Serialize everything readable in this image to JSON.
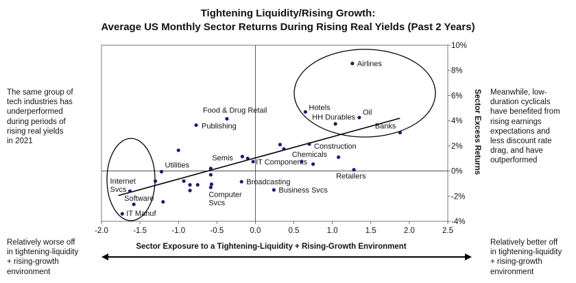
{
  "titles": {
    "line1": "Tightening Liquidity/Rising Growth:",
    "line2": "Average US Monthly Sector Returns During Rising Real Yields (Past 2 Years)"
  },
  "notes": {
    "left": [
      "The same group of",
      "tech industries has",
      "underperformed",
      "during periods of",
      "rising real yields",
      "in 2021"
    ],
    "right": [
      "Meanwhile, low-",
      "duration cyclicals",
      "have benefited from",
      "rising earnings",
      "expectations and",
      "less discount rate",
      "drag, and have",
      "outperformed"
    ],
    "bottom_left": [
      "Relatively worse off",
      "in tightening-liquidity",
      "+ rising-growth",
      "environment"
    ],
    "bottom_right": [
      "Relatively better off",
      "in tightening-liquidity",
      "+ rising-growth",
      "environment"
    ]
  },
  "colors": {
    "point": "#1f1a6e",
    "trend": "#000000",
    "text": "#111111"
  },
  "chart_data": {
    "type": "scatter",
    "xlabel": "Sector Exposure to a Tightening-Liquidity + Rising-Growth Environment",
    "ylabel": "Sector Excess Returns",
    "xlim": [
      -2.0,
      2.5
    ],
    "ylim": [
      -4,
      10
    ],
    "x_ticks": [
      -2.0,
      -1.5,
      -1.0,
      -0.5,
      0.0,
      0.5,
      1.0,
      1.5,
      2.0,
      2.5
    ],
    "x_tick_labels": [
      "-2.0",
      "-1.5",
      "-1.0",
      "-0.5",
      "0.0",
      "0.5",
      "1.0",
      "1.5",
      "2.0",
      "2.5"
    ],
    "y_ticks": [
      -4,
      -2,
      0,
      2,
      4,
      6,
      8,
      10
    ],
    "y_tick_labels": [
      "-4%",
      "-2%",
      "0%",
      "2%",
      "4%",
      "6%",
      "8%",
      "10%"
    ],
    "y_axis_position": "right",
    "grid": false,
    "points": [
      {
        "x": -1.73,
        "y": -3.4,
        "label": "IT Manuf"
      },
      {
        "x": -1.58,
        "y": -2.65,
        "label": "Software"
      },
      {
        "x": -1.63,
        "y": -1.6,
        "label": "Internet Svcs"
      },
      {
        "x": -1.3,
        "y": -0.8,
        "label": ""
      },
      {
        "x": -1.22,
        "y": -0.05,
        "label": "Utilities"
      },
      {
        "x": -1.0,
        "y": 1.65,
        "label": ""
      },
      {
        "x": -1.2,
        "y": -2.45,
        "label": ""
      },
      {
        "x": -0.93,
        "y": -0.8,
        "label": ""
      },
      {
        "x": -0.85,
        "y": -1.1,
        "label": ""
      },
      {
        "x": -0.85,
        "y": -1.55,
        "label": ""
      },
      {
        "x": -0.75,
        "y": -1.1,
        "label": ""
      },
      {
        "x": -0.77,
        "y": 3.65,
        "label": "Publishing"
      },
      {
        "x": -0.37,
        "y": 4.15,
        "label": "Food & Drug Retail"
      },
      {
        "x": -0.58,
        "y": 0.2,
        "label": "Semis"
      },
      {
        "x": -0.57,
        "y": -1.05,
        "label": ""
      },
      {
        "x": -0.58,
        "y": -1.3,
        "label": "Computer Svcs"
      },
      {
        "x": -0.58,
        "y": -0.3,
        "label": ""
      },
      {
        "x": -0.17,
        "y": 1.15,
        "label": ""
      },
      {
        "x": -0.1,
        "y": 1.0,
        "label": ""
      },
      {
        "x": -0.03,
        "y": 0.75,
        "label": "IT Components"
      },
      {
        "x": -0.18,
        "y": -0.85,
        "label": "Broadcasting"
      },
      {
        "x": 0.24,
        "y": -1.5,
        "label": "Business Svcs"
      },
      {
        "x": 0.32,
        "y": 2.1,
        "label": ""
      },
      {
        "x": 0.37,
        "y": 1.75,
        "label": ""
      },
      {
        "x": 0.6,
        "y": 0.75,
        "label": "Chemicals"
      },
      {
        "x": 0.75,
        "y": 0.55,
        "label": ""
      },
      {
        "x": 0.7,
        "y": 2.15,
        "label": "Construction"
      },
      {
        "x": 1.08,
        "y": 1.1,
        "label": ""
      },
      {
        "x": 1.28,
        "y": 0.1,
        "label": "Retailers"
      },
      {
        "x": 0.65,
        "y": 4.7,
        "label": "Hotels"
      },
      {
        "x": 1.04,
        "y": 3.75,
        "label": "HH Durables"
      },
      {
        "x": 1.35,
        "y": 4.25,
        "label": "Oil"
      },
      {
        "x": 1.88,
        "y": 3.05,
        "label": "Banks"
      },
      {
        "x": 1.26,
        "y": 8.55,
        "label": "Airlines"
      }
    ],
    "trendline": {
      "x": [
        -1.78,
        1.88
      ],
      "y": [
        -1.95,
        4.2
      ]
    },
    "highlight_groups": [
      {
        "members": [
          "Internet Svcs",
          "Software",
          "IT Manuf"
        ]
      },
      {
        "members": [
          "Airlines",
          "Hotels",
          "HH Durables",
          "Oil",
          "Banks"
        ]
      }
    ]
  }
}
